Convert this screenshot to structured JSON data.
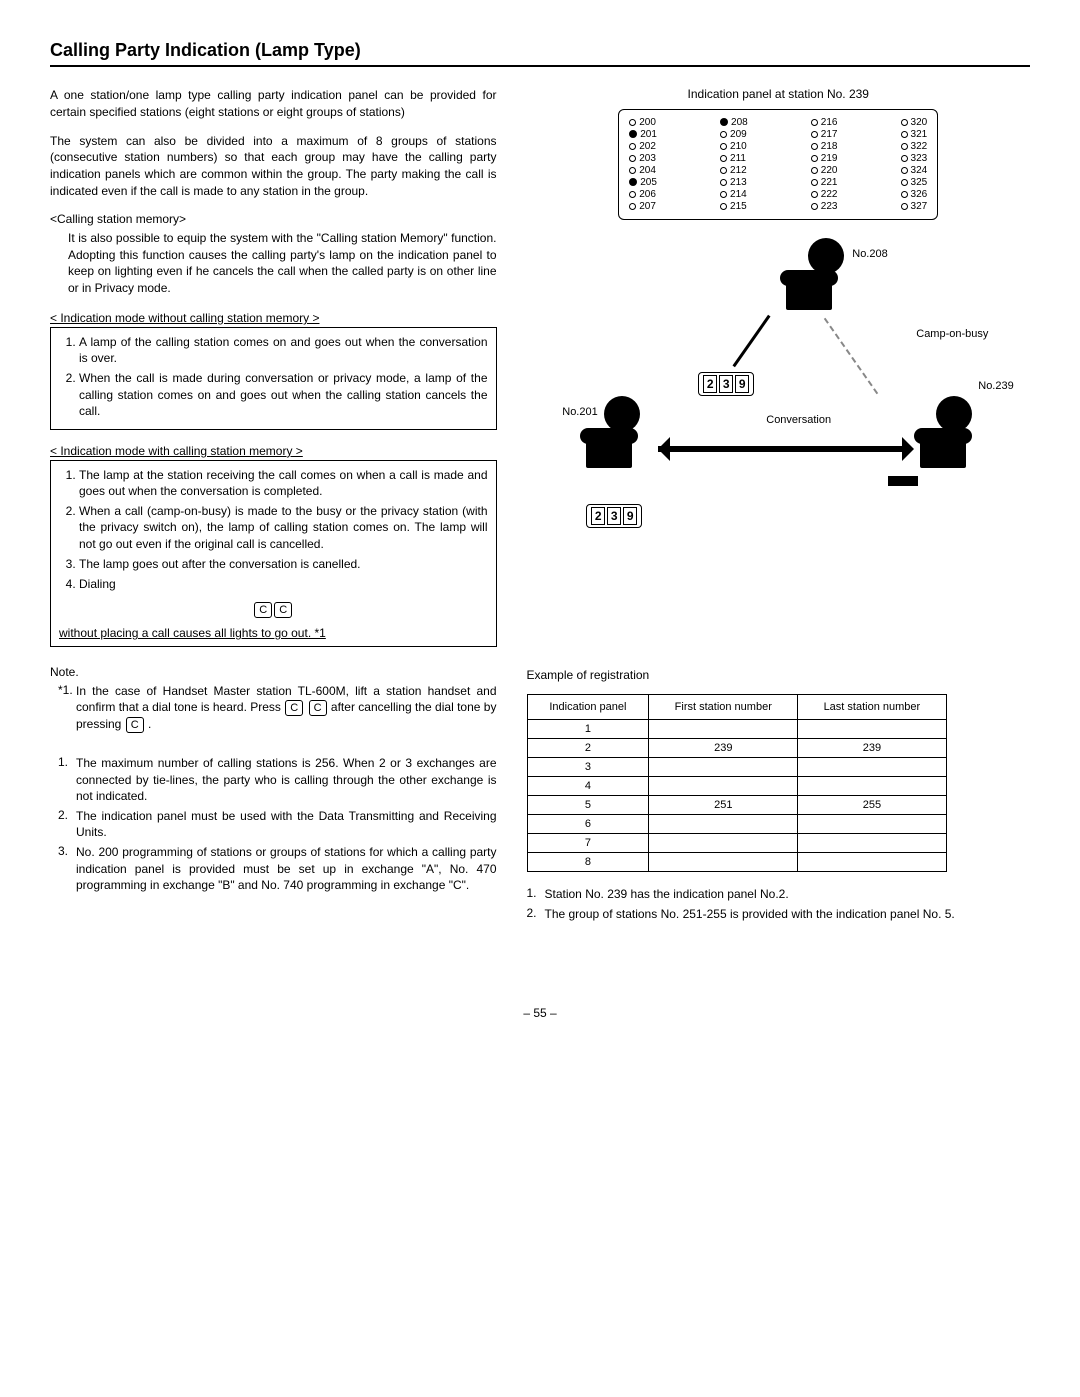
{
  "title": "Calling Party Indication (Lamp Type)",
  "intro1": "A one station/one lamp type calling party indication panel can be provided for certain specified stations (eight stations or eight groups of stations)",
  "intro2": "The system can also be divided into a maximum of 8 groups of stations (consecutive station numbers) so that each group may have the calling party indication panels which are common within the group. The party making the call is indicated even if the call is made to any station in the group.",
  "csm_hdr": "<Calling station memory>",
  "csm_body": "It is also possible to equip the system with the \"Calling station Memory\" function. Adopting this function causes the calling party's lamp on the indication panel to keep on lighting even if he cancels the call when the called party is on other line or in Privacy mode.",
  "mode1_hdr": "<  Indication  mode  without  calling  station  memory  >",
  "mode1_items": {
    "i1": "A lamp of the calling station comes on and goes out when the conversation is over.",
    "i2": "When the call is made during conversation or privacy mode, a lamp of the calling station comes on and goes out when the calling station cancels the call."
  },
  "mode2_hdr": "< Indication mode with calling station memory >",
  "mode2_items": {
    "i1": "The lamp at the station receiving the call comes on when a call is made and goes out when the conversation is completed.",
    "i2": "When a call (camp-on-busy) is made to the busy or the privacy station (with the privacy switch on), the lamp of calling station comes on. The lamp will not go out even if the original call is cancelled.",
    "i3": "The lamp goes out after the conversation is canelled.",
    "i4": "Dialing"
  },
  "cc_line": "without placing a call causes all lights to go out.  *1",
  "note_hdr": "Note.",
  "note_star1_a": "In the case of Handset Master station TL-600M, lift a station handset and confirm that a dial tone is heard. Press ",
  "note_star1_b": " after cancelling the dial tone by pressing ",
  "note_star1_c": " .",
  "notes2": {
    "i1": "The maximum number of calling stations is 256. When 2 or 3 exchanges are connected by tie-lines, the party who is calling through the other exchange is not indicated.",
    "i2": "The indication panel must be used with the Data Transmitting and Receiving Units.",
    "i3": "No. 200 programming of stations or groups of stations for which a calling party indication panel is provided must be set up in exchange \"A\", No. 470 programming in exchange \"B\" and No. 740 programming in exchange \"C\"."
  },
  "panel_title": "Indication panel at station No. 239",
  "panel_cols": {
    "c1": [
      {
        "t": "o",
        "n": "200"
      },
      {
        "t": "f",
        "n": "201"
      },
      {
        "t": "o",
        "n": "202"
      },
      {
        "t": "o",
        "n": "203"
      },
      {
        "t": "o",
        "n": "204"
      },
      {
        "t": "f",
        "n": "205"
      },
      {
        "t": "o",
        "n": "206"
      },
      {
        "t": "o",
        "n": "207"
      }
    ],
    "c2": [
      {
        "t": "f",
        "n": "208"
      },
      {
        "t": "o",
        "n": "209"
      },
      {
        "t": "o",
        "n": "210"
      },
      {
        "t": "o",
        "n": "211"
      },
      {
        "t": "o",
        "n": "212"
      },
      {
        "t": "o",
        "n": "213"
      },
      {
        "t": "o",
        "n": "214"
      },
      {
        "t": "o",
        "n": "215"
      }
    ],
    "c3": [
      {
        "t": "o",
        "n": "216"
      },
      {
        "t": "o",
        "n": "217"
      },
      {
        "t": "o",
        "n": "218"
      },
      {
        "t": "o",
        "n": "219"
      },
      {
        "t": "o",
        "n": "220"
      },
      {
        "t": "o",
        "n": "221"
      },
      {
        "t": "o",
        "n": "222"
      },
      {
        "t": "o",
        "n": "223"
      }
    ],
    "c4": [
      {
        "t": "o",
        "n": "320"
      },
      {
        "t": "o",
        "n": "321"
      },
      {
        "t": "o",
        "n": "322"
      },
      {
        "t": "o",
        "n": "323"
      },
      {
        "t": "o",
        "n": "324"
      },
      {
        "t": "o",
        "n": "325"
      },
      {
        "t": "o",
        "n": "326"
      },
      {
        "t": "o",
        "n": "327"
      }
    ]
  },
  "diag": {
    "no208": "No.208",
    "no201": "No.201",
    "no239": "No.239",
    "camp": "Camp-on-busy",
    "conv": "Conversation",
    "digits239": [
      "2",
      "3",
      "9"
    ]
  },
  "reg_title": "Example of registration",
  "reg_headers": {
    "h1": "Indication panel",
    "h2": "First station number",
    "h3": "Last station number"
  },
  "reg_rows": [
    {
      "p": "1",
      "f": "",
      "l": ""
    },
    {
      "p": "2",
      "f": "239",
      "l": "239"
    },
    {
      "p": "3",
      "f": "",
      "l": ""
    },
    {
      "p": "4",
      "f": "",
      "l": ""
    },
    {
      "p": "5",
      "f": "251",
      "l": "255"
    },
    {
      "p": "6",
      "f": "",
      "l": ""
    },
    {
      "p": "7",
      "f": "",
      "l": ""
    },
    {
      "p": "8",
      "f": "",
      "l": ""
    }
  ],
  "reg_notes": {
    "i1": "Station No. 239 has the indication panel No.2.",
    "i2": "The group of stations No. 251-255 is provided with the indication panel No. 5."
  },
  "page": "– 55 –",
  "key_c": "C"
}
